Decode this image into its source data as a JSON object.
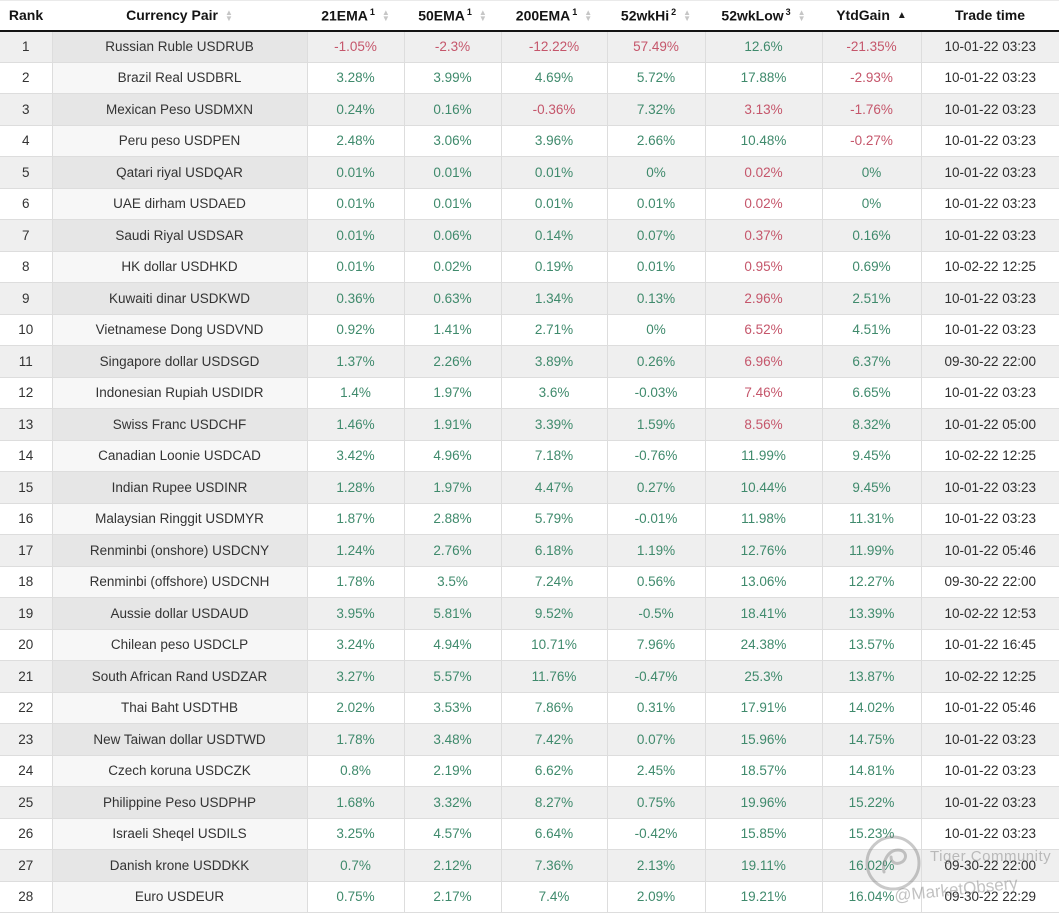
{
  "columns": [
    {
      "key": "rank",
      "label": "Rank",
      "sup": "",
      "sort": "none"
    },
    {
      "key": "pair",
      "label": "Currency Pair",
      "sup": "",
      "sort": "both"
    },
    {
      "key": "ema21",
      "label": "21EMA",
      "sup": "1",
      "sort": "both"
    },
    {
      "key": "ema50",
      "label": "50EMA",
      "sup": "1",
      "sort": "both"
    },
    {
      "key": "ema200",
      "label": "200EMA",
      "sup": "1",
      "sort": "both"
    },
    {
      "key": "hi52",
      "label": "52wkHi",
      "sup": "2",
      "sort": "both"
    },
    {
      "key": "low52",
      "label": "52wkLow",
      "sup": "3",
      "sort": "both"
    },
    {
      "key": "ytd",
      "label": "YtdGain",
      "sup": "",
      "sort": "asc"
    },
    {
      "key": "time",
      "label": "Trade time",
      "sup": "",
      "sort": "none"
    }
  ],
  "rows": [
    {
      "rank": "1",
      "pair": "Russian Ruble USDRUB",
      "cells": [
        [
          "-1.05%",
          "red"
        ],
        [
          "-2.3%",
          "red"
        ],
        [
          "-12.22%",
          "red"
        ],
        [
          "57.49%",
          "red"
        ],
        [
          "12.6%",
          "green"
        ],
        [
          "-21.35%",
          "red"
        ]
      ],
      "time": "10-01-22 03:23"
    },
    {
      "rank": "2",
      "pair": "Brazil Real USDBRL",
      "cells": [
        [
          "3.28%",
          "green"
        ],
        [
          "3.99%",
          "green"
        ],
        [
          "4.69%",
          "green"
        ],
        [
          "5.72%",
          "green"
        ],
        [
          "17.88%",
          "green"
        ],
        [
          "-2.93%",
          "red"
        ]
      ],
      "time": "10-01-22 03:23"
    },
    {
      "rank": "3",
      "pair": "Mexican Peso USDMXN",
      "cells": [
        [
          "0.24%",
          "green"
        ],
        [
          "0.16%",
          "green"
        ],
        [
          "-0.36%",
          "red"
        ],
        [
          "7.32%",
          "green"
        ],
        [
          "3.13%",
          "red"
        ],
        [
          "-1.76%",
          "red"
        ]
      ],
      "time": "10-01-22 03:23"
    },
    {
      "rank": "4",
      "pair": "Peru peso USDPEN",
      "cells": [
        [
          "2.48%",
          "green"
        ],
        [
          "3.06%",
          "green"
        ],
        [
          "3.96%",
          "green"
        ],
        [
          "2.66%",
          "green"
        ],
        [
          "10.48%",
          "green"
        ],
        [
          "-0.27%",
          "red"
        ]
      ],
      "time": "10-01-22 03:23"
    },
    {
      "rank": "5",
      "pair": "Qatari riyal USDQAR",
      "cells": [
        [
          "0.01%",
          "green"
        ],
        [
          "0.01%",
          "green"
        ],
        [
          "0.01%",
          "green"
        ],
        [
          "0%",
          "green"
        ],
        [
          "0.02%",
          "red"
        ],
        [
          "0%",
          "green"
        ]
      ],
      "time": "10-01-22 03:23"
    },
    {
      "rank": "6",
      "pair": "UAE dirham USDAED",
      "cells": [
        [
          "0.01%",
          "green"
        ],
        [
          "0.01%",
          "green"
        ],
        [
          "0.01%",
          "green"
        ],
        [
          "0.01%",
          "green"
        ],
        [
          "0.02%",
          "red"
        ],
        [
          "0%",
          "green"
        ]
      ],
      "time": "10-01-22 03:23"
    },
    {
      "rank": "7",
      "pair": "Saudi Riyal USDSAR",
      "cells": [
        [
          "0.01%",
          "green"
        ],
        [
          "0.06%",
          "green"
        ],
        [
          "0.14%",
          "green"
        ],
        [
          "0.07%",
          "green"
        ],
        [
          "0.37%",
          "red"
        ],
        [
          "0.16%",
          "green"
        ]
      ],
      "time": "10-01-22 03:23"
    },
    {
      "rank": "8",
      "pair": "HK dollar USDHKD",
      "cells": [
        [
          "0.01%",
          "green"
        ],
        [
          "0.02%",
          "green"
        ],
        [
          "0.19%",
          "green"
        ],
        [
          "0.01%",
          "green"
        ],
        [
          "0.95%",
          "red"
        ],
        [
          "0.69%",
          "green"
        ]
      ],
      "time": "10-02-22 12:25"
    },
    {
      "rank": "9",
      "pair": "Kuwaiti dinar USDKWD",
      "cells": [
        [
          "0.36%",
          "green"
        ],
        [
          "0.63%",
          "green"
        ],
        [
          "1.34%",
          "green"
        ],
        [
          "0.13%",
          "green"
        ],
        [
          "2.96%",
          "red"
        ],
        [
          "2.51%",
          "green"
        ]
      ],
      "time": "10-01-22 03:23"
    },
    {
      "rank": "10",
      "pair": "Vietnamese Dong USDVND",
      "cells": [
        [
          "0.92%",
          "green"
        ],
        [
          "1.41%",
          "green"
        ],
        [
          "2.71%",
          "green"
        ],
        [
          "0%",
          "green"
        ],
        [
          "6.52%",
          "red"
        ],
        [
          "4.51%",
          "green"
        ]
      ],
      "time": "10-01-22 03:23"
    },
    {
      "rank": "11",
      "pair": "Singapore dollar USDSGD",
      "cells": [
        [
          "1.37%",
          "green"
        ],
        [
          "2.26%",
          "green"
        ],
        [
          "3.89%",
          "green"
        ],
        [
          "0.26%",
          "green"
        ],
        [
          "6.96%",
          "red"
        ],
        [
          "6.37%",
          "green"
        ]
      ],
      "time": "09-30-22 22:00"
    },
    {
      "rank": "12",
      "pair": "Indonesian Rupiah USDIDR",
      "cells": [
        [
          "1.4%",
          "green"
        ],
        [
          "1.97%",
          "green"
        ],
        [
          "3.6%",
          "green"
        ],
        [
          "-0.03%",
          "green"
        ],
        [
          "7.46%",
          "red"
        ],
        [
          "6.65%",
          "green"
        ]
      ],
      "time": "10-01-22 03:23"
    },
    {
      "rank": "13",
      "pair": "Swiss Franc USDCHF",
      "cells": [
        [
          "1.46%",
          "green"
        ],
        [
          "1.91%",
          "green"
        ],
        [
          "3.39%",
          "green"
        ],
        [
          "1.59%",
          "green"
        ],
        [
          "8.56%",
          "red"
        ],
        [
          "8.32%",
          "green"
        ]
      ],
      "time": "10-01-22 05:00"
    },
    {
      "rank": "14",
      "pair": "Canadian Loonie USDCAD",
      "cells": [
        [
          "3.42%",
          "green"
        ],
        [
          "4.96%",
          "green"
        ],
        [
          "7.18%",
          "green"
        ],
        [
          "-0.76%",
          "green"
        ],
        [
          "11.99%",
          "green"
        ],
        [
          "9.45%",
          "green"
        ]
      ],
      "time": "10-02-22 12:25"
    },
    {
      "rank": "15",
      "pair": "Indian Rupee USDINR",
      "cells": [
        [
          "1.28%",
          "green"
        ],
        [
          "1.97%",
          "green"
        ],
        [
          "4.47%",
          "green"
        ],
        [
          "0.27%",
          "green"
        ],
        [
          "10.44%",
          "green"
        ],
        [
          "9.45%",
          "green"
        ]
      ],
      "time": "10-01-22 03:23"
    },
    {
      "rank": "16",
      "pair": "Malaysian Ringgit USDMYR",
      "cells": [
        [
          "1.87%",
          "green"
        ],
        [
          "2.88%",
          "green"
        ],
        [
          "5.79%",
          "green"
        ],
        [
          "-0.01%",
          "green"
        ],
        [
          "11.98%",
          "green"
        ],
        [
          "11.31%",
          "green"
        ]
      ],
      "time": "10-01-22 03:23"
    },
    {
      "rank": "17",
      "pair": "Renminbi (onshore) USDCNY",
      "cells": [
        [
          "1.24%",
          "green"
        ],
        [
          "2.76%",
          "green"
        ],
        [
          "6.18%",
          "green"
        ],
        [
          "1.19%",
          "green"
        ],
        [
          "12.76%",
          "green"
        ],
        [
          "11.99%",
          "green"
        ]
      ],
      "time": "10-01-22 05:46"
    },
    {
      "rank": "18",
      "pair": "Renminbi (offshore) USDCNH",
      "cells": [
        [
          "1.78%",
          "green"
        ],
        [
          "3.5%",
          "green"
        ],
        [
          "7.24%",
          "green"
        ],
        [
          "0.56%",
          "green"
        ],
        [
          "13.06%",
          "green"
        ],
        [
          "12.27%",
          "green"
        ]
      ],
      "time": "09-30-22 22:00"
    },
    {
      "rank": "19",
      "pair": "Aussie dollar USDAUD",
      "cells": [
        [
          "3.95%",
          "green"
        ],
        [
          "5.81%",
          "green"
        ],
        [
          "9.52%",
          "green"
        ],
        [
          "-0.5%",
          "green"
        ],
        [
          "18.41%",
          "green"
        ],
        [
          "13.39%",
          "green"
        ]
      ],
      "time": "10-02-22 12:53"
    },
    {
      "rank": "20",
      "pair": "Chilean peso USDCLP",
      "cells": [
        [
          "3.24%",
          "green"
        ],
        [
          "4.94%",
          "green"
        ],
        [
          "10.71%",
          "green"
        ],
        [
          "7.96%",
          "green"
        ],
        [
          "24.38%",
          "green"
        ],
        [
          "13.57%",
          "green"
        ]
      ],
      "time": "10-01-22 16:45"
    },
    {
      "rank": "21",
      "pair": "South African Rand USDZAR",
      "cells": [
        [
          "3.27%",
          "green"
        ],
        [
          "5.57%",
          "green"
        ],
        [
          "11.76%",
          "green"
        ],
        [
          "-0.47%",
          "green"
        ],
        [
          "25.3%",
          "green"
        ],
        [
          "13.87%",
          "green"
        ]
      ],
      "time": "10-02-22 12:25"
    },
    {
      "rank": "22",
      "pair": "Thai Baht USDTHB",
      "cells": [
        [
          "2.02%",
          "green"
        ],
        [
          "3.53%",
          "green"
        ],
        [
          "7.86%",
          "green"
        ],
        [
          "0.31%",
          "green"
        ],
        [
          "17.91%",
          "green"
        ],
        [
          "14.02%",
          "green"
        ]
      ],
      "time": "10-01-22 05:46"
    },
    {
      "rank": "23",
      "pair": "New Taiwan dollar USDTWD",
      "cells": [
        [
          "1.78%",
          "green"
        ],
        [
          "3.48%",
          "green"
        ],
        [
          "7.42%",
          "green"
        ],
        [
          "0.07%",
          "green"
        ],
        [
          "15.96%",
          "green"
        ],
        [
          "14.75%",
          "green"
        ]
      ],
      "time": "10-01-22 03:23"
    },
    {
      "rank": "24",
      "pair": "Czech koruna USDCZK",
      "cells": [
        [
          "0.8%",
          "green"
        ],
        [
          "2.19%",
          "green"
        ],
        [
          "6.62%",
          "green"
        ],
        [
          "2.45%",
          "green"
        ],
        [
          "18.57%",
          "green"
        ],
        [
          "14.81%",
          "green"
        ]
      ],
      "time": "10-01-22 03:23"
    },
    {
      "rank": "25",
      "pair": "Philippine Peso USDPHP",
      "cells": [
        [
          "1.68%",
          "green"
        ],
        [
          "3.32%",
          "green"
        ],
        [
          "8.27%",
          "green"
        ],
        [
          "0.75%",
          "green"
        ],
        [
          "19.96%",
          "green"
        ],
        [
          "15.22%",
          "green"
        ]
      ],
      "time": "10-01-22 03:23"
    },
    {
      "rank": "26",
      "pair": "Israeli Sheqel USDILS",
      "cells": [
        [
          "3.25%",
          "green"
        ],
        [
          "4.57%",
          "green"
        ],
        [
          "6.64%",
          "green"
        ],
        [
          "-0.42%",
          "green"
        ],
        [
          "15.85%",
          "green"
        ],
        [
          "15.23%",
          "green"
        ]
      ],
      "time": "10-01-22 03:23"
    },
    {
      "rank": "27",
      "pair": "Danish krone USDDKK",
      "cells": [
        [
          "0.7%",
          "green"
        ],
        [
          "2.12%",
          "green"
        ],
        [
          "7.36%",
          "green"
        ],
        [
          "2.13%",
          "green"
        ],
        [
          "19.11%",
          "green"
        ],
        [
          "16.02%",
          "green"
        ]
      ],
      "time": "09-30-22 22:00"
    },
    {
      "rank": "28",
      "pair": "Euro USDEUR",
      "cells": [
        [
          "0.75%",
          "green"
        ],
        [
          "2.17%",
          "green"
        ],
        [
          "7.4%",
          "green"
        ],
        [
          "2.09%",
          "green"
        ],
        [
          "19.21%",
          "green"
        ],
        [
          "16.04%",
          "green"
        ]
      ],
      "time": "09-30-22 22:29"
    }
  ],
  "cell_keys": [
    "ema21",
    "ema50",
    "ema200",
    "52wkhi",
    "52wklow",
    "ytdgain"
  ],
  "sort_icons": {
    "both": "updown-arrows",
    "asc": "up-arrow"
  },
  "watermark": {
    "line1": "Tiger Community",
    "line2": "@MarketObsery"
  },
  "colors": {
    "green": "#3f8a6c",
    "red": "#c5566b",
    "stripe": "#efefef",
    "header_border": "#141414"
  }
}
